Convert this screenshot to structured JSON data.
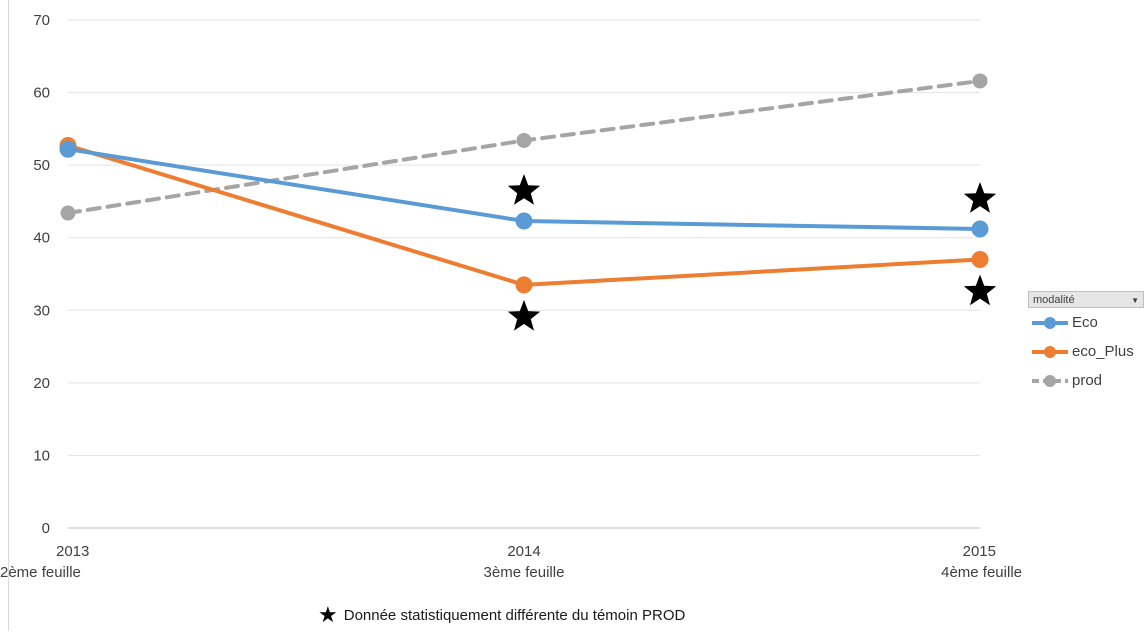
{
  "chart_data": {
    "type": "line",
    "x": [
      "2013",
      "2014",
      "2015"
    ],
    "x_sublabels": [
      "2ème feuille",
      "3ème feuille",
      "4ème feuille"
    ],
    "ylim": [
      0,
      70
    ],
    "yticks": [
      0,
      10,
      20,
      30,
      40,
      50,
      60,
      70
    ],
    "grid": true,
    "series": [
      {
        "name": "Eco",
        "values": [
          52.2,
          42.3,
          41.2
        ],
        "color": "#5b9bd5",
        "dash": false,
        "significant": [
          false,
          true,
          true
        ],
        "star_side": "above"
      },
      {
        "name": "eco_Plus",
        "values": [
          52.7,
          33.5,
          37.0
        ],
        "color": "#ed7d31",
        "dash": false,
        "significant": [
          false,
          true,
          true
        ],
        "star_side": "below"
      },
      {
        "name": "prod",
        "values": [
          43.4,
          53.4,
          61.6
        ],
        "color": "#a5a5a5",
        "dash": true,
        "significant": [
          false,
          false,
          false
        ],
        "star_side": ""
      }
    ],
    "legend": {
      "title": "modalité",
      "placement": "right"
    },
    "footnote": "Donnée statistiquement différente du témoin PROD"
  }
}
